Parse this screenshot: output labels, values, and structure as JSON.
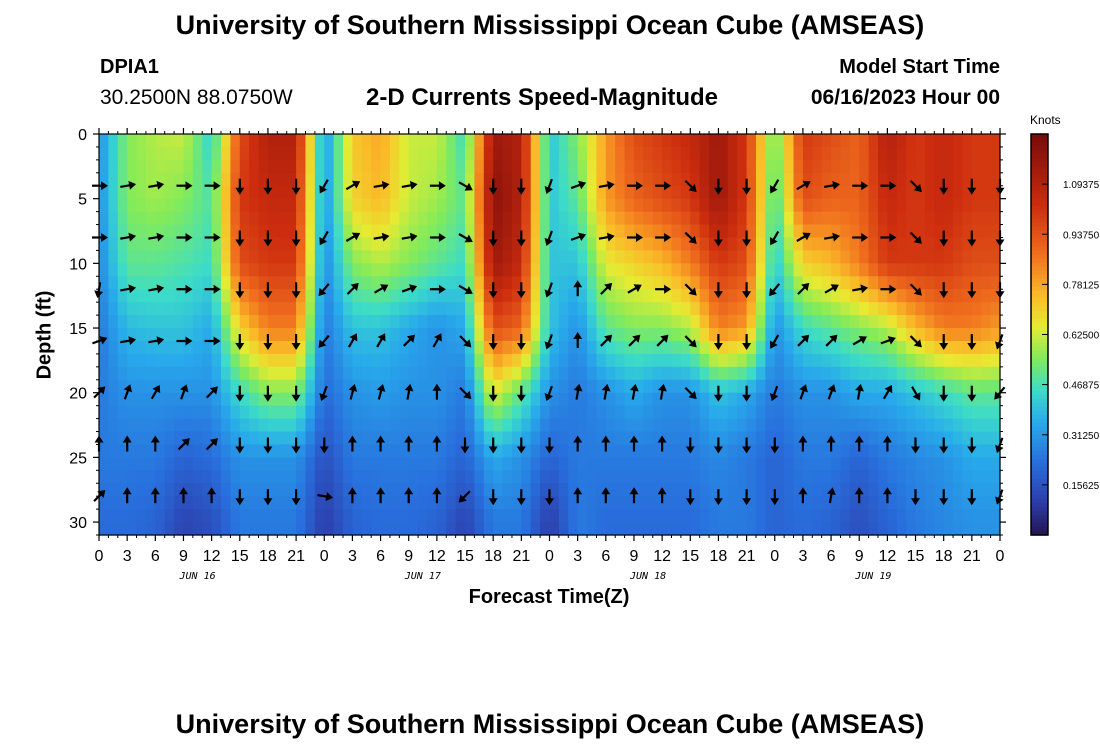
{
  "header": {
    "title": "University of Southern Mississippi Ocean Cube (AMSEAS)",
    "title_repeat": "University of Southern Mississippi Ocean Cube (AMSEAS)",
    "station_id": "DPIA1",
    "coordinates": "30.2500N  88.0750W",
    "subtitle": "2-D Currents Speed-Magnitude",
    "model_start_label": "Model Start Time",
    "model_start_value": "06/16/2023 Hour 00"
  },
  "chart_data": {
    "type": "heatmap",
    "title": "2-D Currents Speed-Magnitude",
    "xlabel": "Forecast Time(Z)",
    "ylabel": "Depth (ft)",
    "x_range_hours": [
      0,
      96
    ],
    "ylim": [
      0,
      31
    ],
    "y_inverted": true,
    "y_ticks": [
      0,
      5,
      10,
      15,
      20,
      25,
      30
    ],
    "x_tick_labels": [
      "0",
      "3",
      "6",
      "9",
      "12",
      "15",
      "18",
      "21",
      "0",
      "3",
      "6",
      "9",
      "12",
      "15",
      "18",
      "21",
      "0",
      "3",
      "6",
      "9",
      "12",
      "15",
      "18",
      "21",
      "0",
      "3",
      "6",
      "9",
      "12",
      "15",
      "18",
      "21",
      "0"
    ],
    "day_labels": [
      {
        "label": "JUN 16",
        "hour": 10.5
      },
      {
        "label": "JUN 17",
        "hour": 34.5
      },
      {
        "label": "JUN 18",
        "hour": 58.5
      },
      {
        "label": "JUN 19",
        "hour": 82.5
      }
    ],
    "colorbar": {
      "units": "Knots",
      "range": [
        0,
        1.25
      ],
      "tick_labels": [
        "0.15625",
        "0.31250",
        "0.46875",
        "0.62500",
        "0.78125",
        "0.93750",
        "1.09375"
      ],
      "tick_values": [
        0.15625,
        0.3125,
        0.46875,
        0.625,
        0.78125,
        0.9375,
        1.09375
      ]
    },
    "speed_anchor_hours": [
      0,
      3,
      6,
      9,
      12,
      15,
      18,
      21,
      24,
      27,
      30,
      33,
      36,
      39,
      42,
      45,
      48,
      51,
      54,
      57,
      60,
      63,
      66,
      69,
      72,
      75,
      78,
      81,
      84,
      87,
      90,
      93,
      96
    ],
    "speed_anchor_depths": [
      0,
      5,
      10,
      15,
      20,
      25,
      30
    ],
    "speed_knots": [
      [
        0.3,
        0.55,
        0.6,
        0.62,
        0.42,
        0.95,
        1.1,
        1.1,
        0.3,
        0.72,
        0.78,
        0.62,
        0.62,
        0.45,
        1.15,
        1.1,
        0.4,
        0.55,
        0.8,
        0.95,
        1.0,
        1.05,
        1.15,
        1.0,
        0.5,
        1.0,
        0.95,
        0.9,
        1.1,
        1.0,
        1.05,
        1.0,
        1.0
      ],
      [
        0.3,
        0.55,
        0.58,
        0.55,
        0.48,
        1.0,
        1.05,
        1.05,
        0.3,
        0.7,
        0.75,
        0.62,
        0.58,
        0.5,
        1.2,
        1.1,
        0.4,
        0.5,
        0.8,
        0.9,
        0.95,
        1.0,
        1.15,
        1.0,
        0.45,
        0.95,
        0.9,
        0.9,
        1.05,
        1.0,
        1.05,
        1.0,
        1.0
      ],
      [
        0.28,
        0.5,
        0.5,
        0.48,
        0.45,
        0.95,
        1.0,
        1.0,
        0.28,
        0.55,
        0.6,
        0.55,
        0.5,
        0.45,
        1.15,
        1.05,
        0.4,
        0.4,
        0.65,
        0.7,
        0.75,
        0.85,
        1.0,
        0.95,
        0.4,
        0.7,
        0.75,
        0.85,
        1.0,
        1.0,
        1.0,
        0.95,
        0.95
      ],
      [
        0.25,
        0.38,
        0.4,
        0.4,
        0.35,
        0.7,
        0.85,
        0.85,
        0.25,
        0.4,
        0.4,
        0.35,
        0.3,
        0.35,
        0.95,
        0.9,
        0.4,
        0.3,
        0.5,
        0.55,
        0.55,
        0.6,
        0.85,
        0.8,
        0.3,
        0.45,
        0.5,
        0.55,
        0.6,
        0.75,
        0.85,
        0.85,
        0.8
      ],
      [
        0.25,
        0.3,
        0.3,
        0.3,
        0.3,
        0.45,
        0.55,
        0.55,
        0.22,
        0.3,
        0.32,
        0.3,
        0.3,
        0.25,
        0.65,
        0.5,
        0.3,
        0.25,
        0.3,
        0.35,
        0.3,
        0.3,
        0.4,
        0.35,
        0.25,
        0.3,
        0.3,
        0.35,
        0.35,
        0.4,
        0.45,
        0.5,
        0.5
      ],
      [
        0.25,
        0.25,
        0.25,
        0.2,
        0.22,
        0.3,
        0.3,
        0.3,
        0.15,
        0.25,
        0.25,
        0.25,
        0.25,
        0.2,
        0.35,
        0.3,
        0.2,
        0.25,
        0.25,
        0.25,
        0.25,
        0.25,
        0.28,
        0.25,
        0.2,
        0.25,
        0.25,
        0.2,
        0.25,
        0.28,
        0.3,
        0.35,
        0.35
      ],
      [
        0.22,
        0.22,
        0.2,
        0.12,
        0.15,
        0.25,
        0.25,
        0.25,
        0.1,
        0.2,
        0.22,
        0.22,
        0.2,
        0.12,
        0.25,
        0.25,
        0.1,
        0.25,
        0.22,
        0.22,
        0.22,
        0.22,
        0.25,
        0.25,
        0.2,
        0.22,
        0.2,
        0.15,
        0.2,
        0.25,
        0.28,
        0.3,
        0.3
      ]
    ],
    "vector_hours": [
      0,
      3,
      6,
      9,
      12,
      15,
      18,
      21,
      24,
      27,
      30,
      33,
      36,
      39,
      42,
      45,
      48,
      51,
      54,
      57,
      60,
      63,
      66,
      69,
      72,
      75,
      78,
      81,
      84,
      87,
      90,
      93,
      96
    ],
    "vector_depths": [
      4,
      8,
      12,
      16,
      20,
      24,
      28
    ],
    "vector_direction_deg": [
      [
        90,
        80,
        80,
        90,
        90,
        180,
        180,
        180,
        210,
        60,
        80,
        80,
        90,
        120,
        180,
        180,
        200,
        70,
        80,
        90,
        90,
        135,
        180,
        180,
        210,
        60,
        80,
        90,
        90,
        135,
        180,
        180,
        180
      ],
      [
        90,
        80,
        80,
        90,
        90,
        180,
        180,
        180,
        210,
        60,
        80,
        80,
        90,
        120,
        180,
        180,
        200,
        70,
        80,
        90,
        90,
        135,
        180,
        180,
        210,
        60,
        80,
        90,
        90,
        135,
        180,
        180,
        180
      ],
      [
        190,
        80,
        80,
        90,
        90,
        180,
        180,
        180,
        220,
        45,
        60,
        70,
        90,
        120,
        180,
        180,
        200,
        0,
        45,
        60,
        90,
        135,
        180,
        180,
        220,
        45,
        60,
        80,
        90,
        135,
        180,
        180,
        180
      ],
      [
        70,
        80,
        80,
        90,
        90,
        180,
        180,
        180,
        220,
        30,
        30,
        45,
        30,
        135,
        180,
        180,
        200,
        0,
        45,
        45,
        45,
        135,
        180,
        180,
        210,
        45,
        45,
        60,
        70,
        135,
        180,
        180,
        200
      ],
      [
        45,
        20,
        30,
        20,
        45,
        180,
        180,
        180,
        200,
        15,
        15,
        10,
        0,
        135,
        180,
        180,
        200,
        10,
        10,
        10,
        10,
        135,
        180,
        180,
        200,
        20,
        20,
        10,
        30,
        150,
        180,
        180,
        220
      ],
      [
        0,
        0,
        0,
        45,
        45,
        180,
        180,
        180,
        180,
        0,
        0,
        0,
        0,
        180,
        180,
        180,
        180,
        0,
        0,
        0,
        0,
        180,
        180,
        180,
        180,
        0,
        0,
        0,
        0,
        180,
        180,
        180,
        200
      ],
      [
        45,
        0,
        0,
        0,
        0,
        180,
        180,
        180,
        100,
        0,
        0,
        0,
        0,
        225,
        180,
        180,
        180,
        0,
        0,
        0,
        0,
        180,
        180,
        180,
        180,
        0,
        10,
        0,
        0,
        180,
        180,
        180,
        200
      ]
    ]
  }
}
